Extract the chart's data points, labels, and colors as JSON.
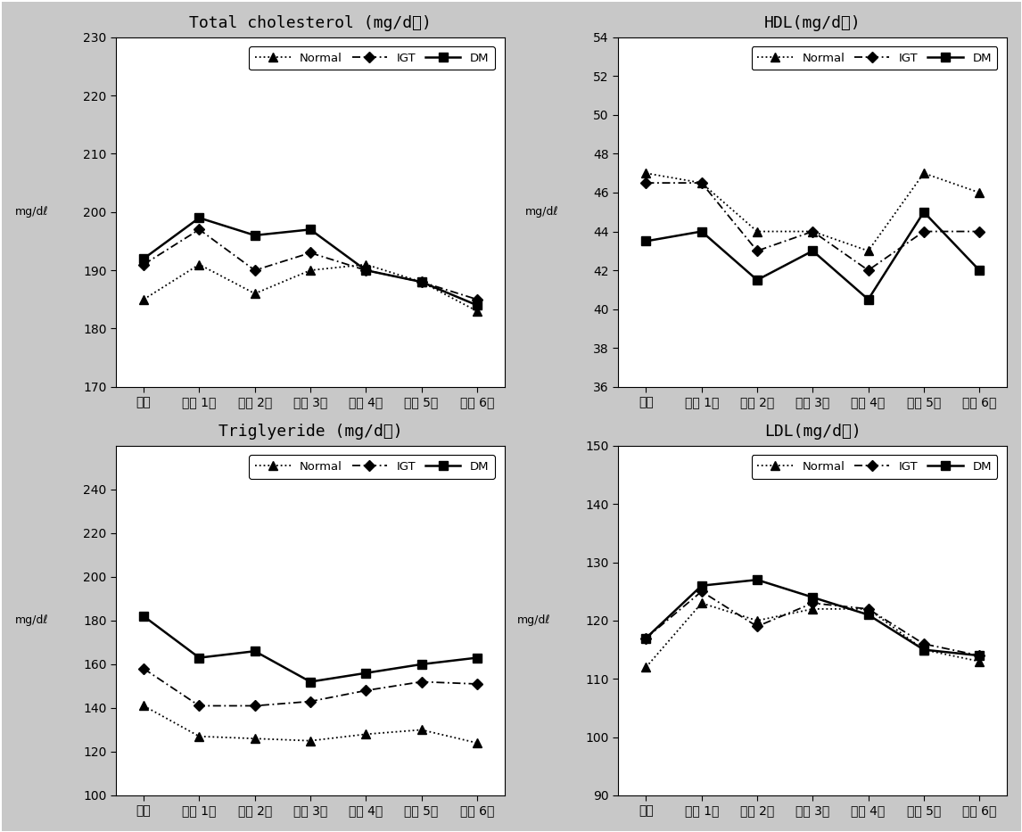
{
  "x_labels": [
    "기초",
    "추적 1기",
    "추적 2기",
    "추적 3기",
    "추적 4기",
    "추적 5기",
    "추적 6기"
  ],
  "total_cholesterol": {
    "title": "Total cholesterol (mg/dℓ)",
    "ylabel": "mg/dℓ",
    "ylim": [
      170,
      230
    ],
    "yticks": [
      170,
      180,
      190,
      200,
      210,
      220,
      230
    ],
    "normal": [
      185,
      191,
      186,
      190,
      191,
      188,
      183
    ],
    "igt": [
      191,
      197,
      190,
      193,
      190,
      188,
      185
    ],
    "dm": [
      192,
      199,
      196,
      197,
      190,
      188,
      184
    ]
  },
  "hdl": {
    "title": "HDL(mg/dℓ)",
    "ylabel": "mg/dℓ",
    "ylim": [
      36,
      54
    ],
    "yticks": [
      36,
      38,
      40,
      42,
      44,
      46,
      48,
      50,
      52,
      54
    ],
    "normal": [
      47.0,
      46.5,
      44.0,
      44.0,
      43.0,
      47.0,
      46.0
    ],
    "igt": [
      46.5,
      46.5,
      43.0,
      44.0,
      42.0,
      44.0,
      44.0
    ],
    "dm": [
      43.5,
      44.0,
      41.5,
      43.0,
      40.5,
      45.0,
      42.0
    ]
  },
  "triglyceride": {
    "title": "Triglyeride (mg/dℓ)",
    "ylabel": "mg/dℓ",
    "ylim": [
      100,
      260
    ],
    "yticks": [
      100,
      120,
      140,
      160,
      180,
      200,
      220,
      240
    ],
    "normal": [
      141,
      127,
      126,
      125,
      128,
      130,
      124
    ],
    "igt": [
      158,
      141,
      141,
      143,
      148,
      152,
      151
    ],
    "dm": [
      182,
      163,
      166,
      152,
      156,
      160,
      163
    ]
  },
  "ldl": {
    "title": "LDL(mg/dℓ)",
    "ylabel": "mg/dℓ",
    "ylim": [
      90,
      150
    ],
    "yticks": [
      90,
      100,
      110,
      120,
      130,
      140,
      150
    ],
    "normal": [
      112,
      123,
      120,
      122,
      122,
      115,
      113
    ],
    "igt": [
      117,
      125,
      119,
      123,
      122,
      116,
      114
    ],
    "dm": [
      117,
      126,
      127,
      124,
      121,
      115,
      114
    ]
  },
  "fig_facecolor": "#c8c8c8",
  "ax_facecolor": "#ffffff",
  "panel_edge_color": "#000000"
}
